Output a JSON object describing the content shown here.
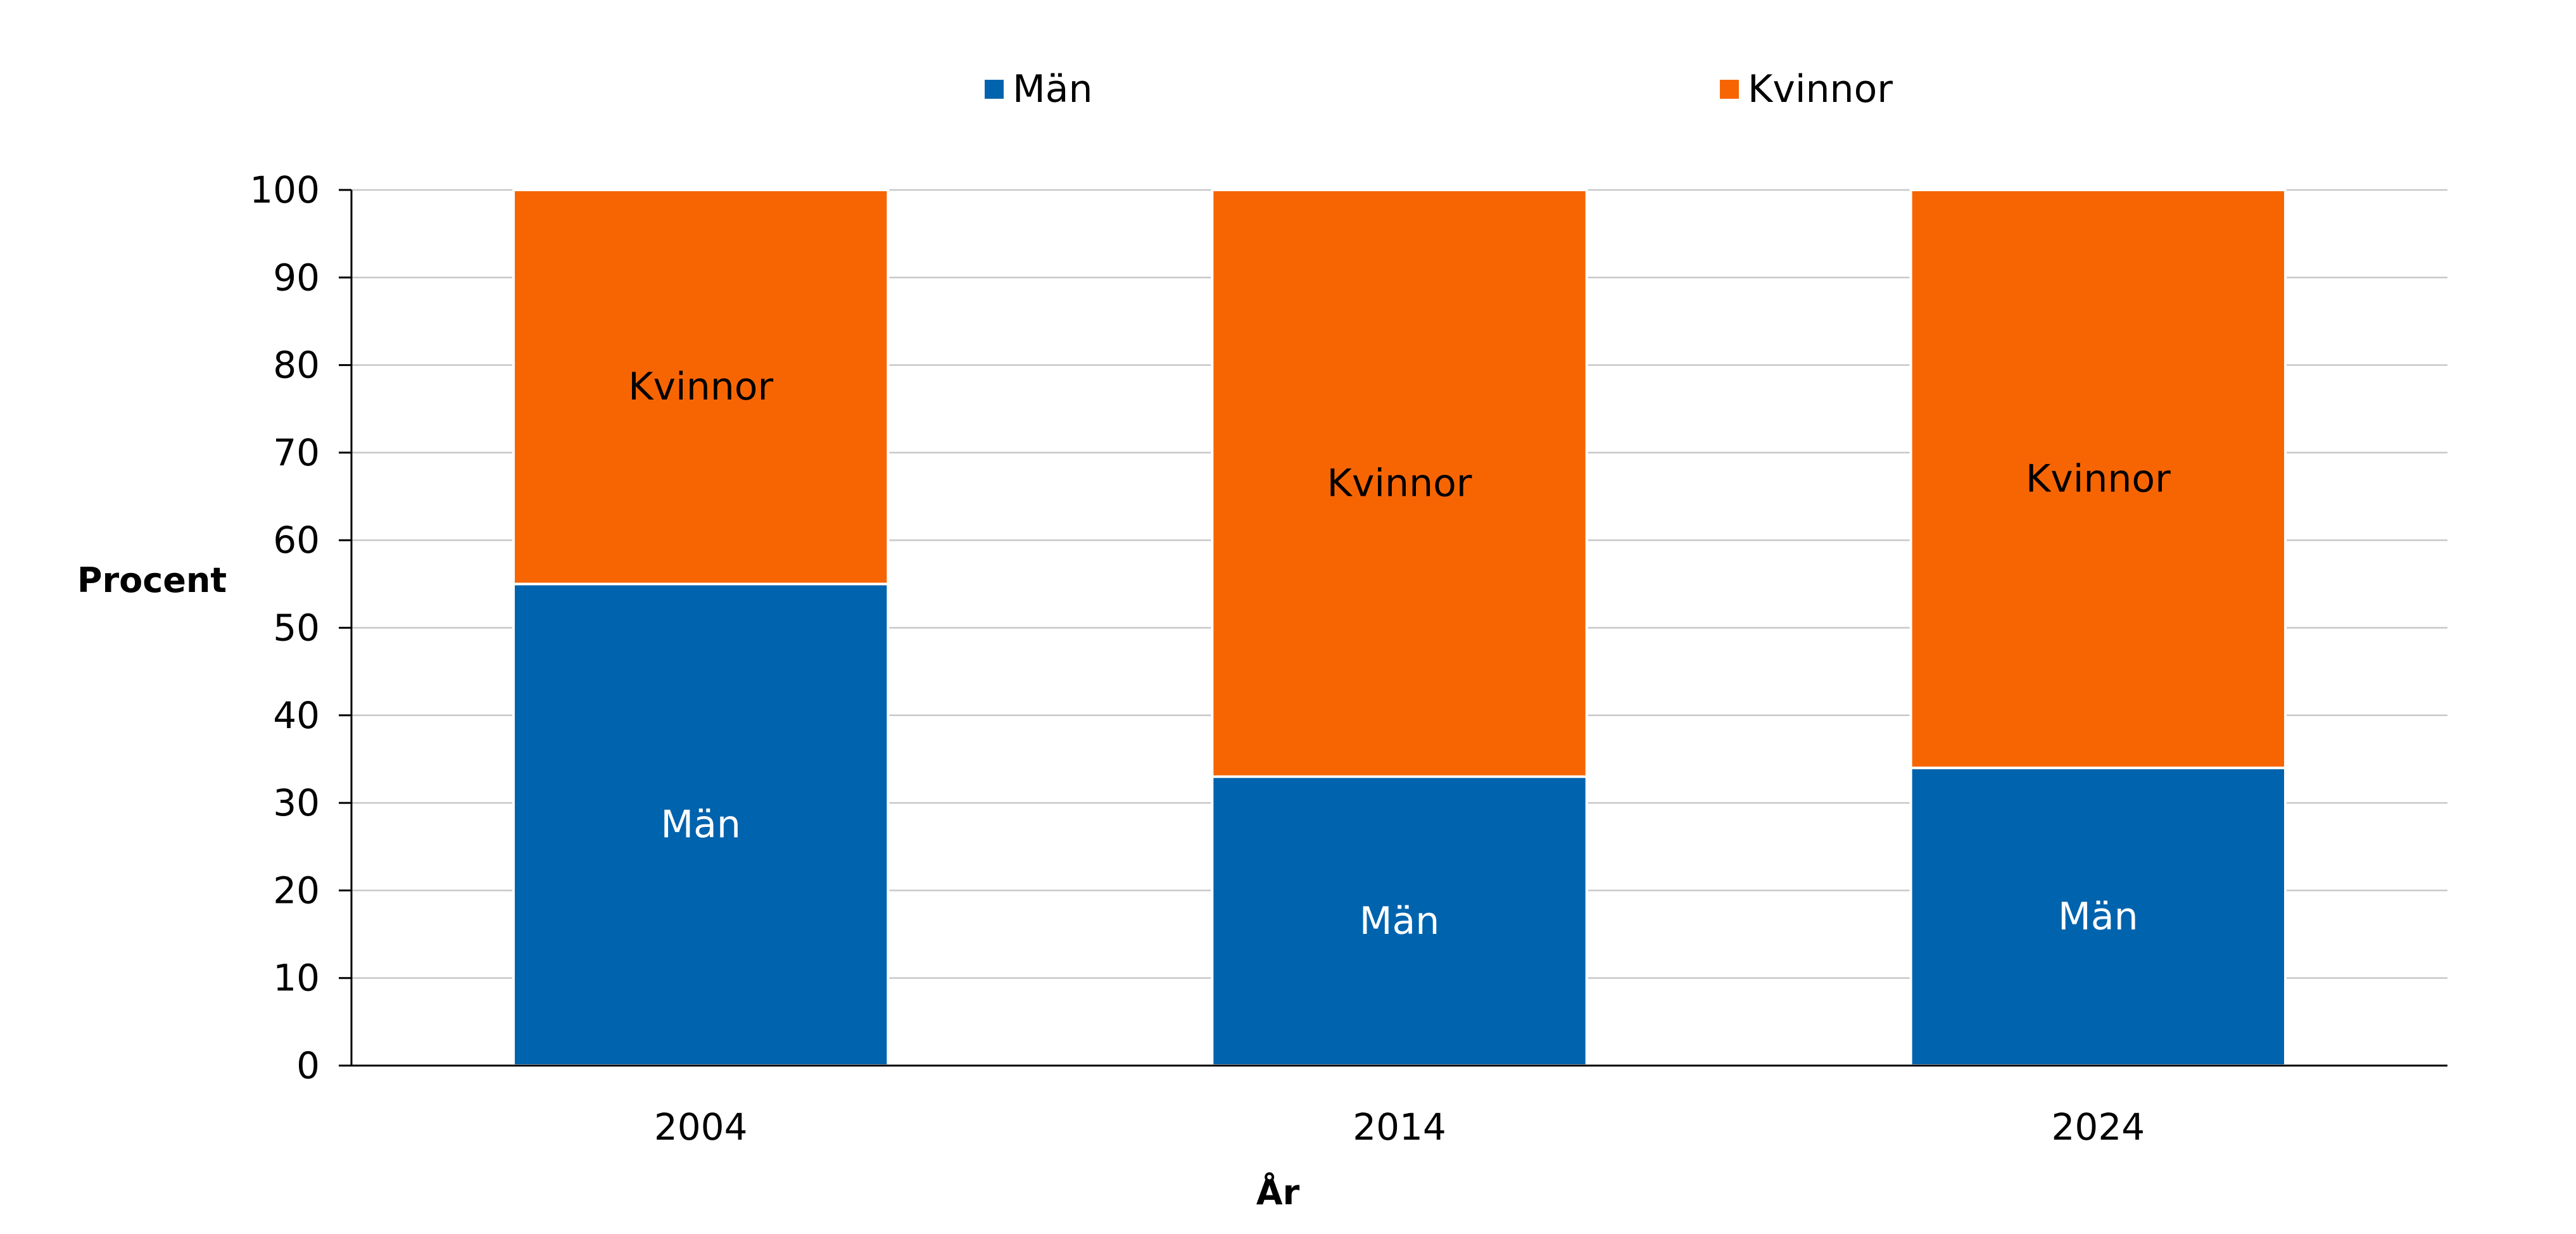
{
  "chart_data": {
    "type": "bar",
    "stacked": true,
    "categories": [
      "2004",
      "2014",
      "2024"
    ],
    "series": [
      {
        "name": "Män",
        "values": [
          55,
          33,
          34
        ],
        "color": "#0063AE",
        "label_color": "#ffffff"
      },
      {
        "name": "Kvinnor",
        "values": [
          45,
          67,
          66
        ],
        "color": "#F76503",
        "label_color": "#000000"
      }
    ],
    "segment_labels": [
      "Män",
      "Kvinnor"
    ],
    "xlabel": "År",
    "ylabel": "Procent",
    "ylim": [
      0,
      100
    ],
    "yticks": [
      0,
      10,
      20,
      30,
      40,
      50,
      60,
      70,
      80,
      90,
      100
    ],
    "grid": true,
    "legend_position": "top"
  }
}
